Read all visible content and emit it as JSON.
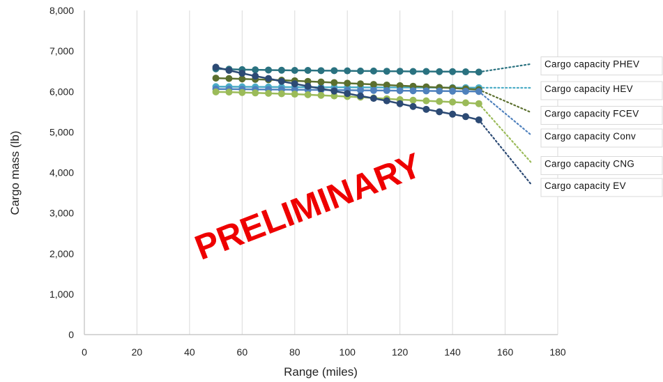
{
  "chart_data": {
    "type": "line",
    "xlabel": "Range (miles)",
    "ylabel": "Cargo mass (lb)",
    "xlim": [
      0,
      180
    ],
    "ylim": [
      0,
      8000
    ],
    "x_ticks": [
      "0",
      "20",
      "40",
      "60",
      "80",
      "100",
      "120",
      "140",
      "160",
      "180"
    ],
    "y_ticks": [
      "0",
      "1,000",
      "2,000",
      "3,000",
      "4,000",
      "5,000",
      "6,000",
      "7,000",
      "8,000"
    ],
    "grid": "vertical gridlines",
    "legend_placement": "right, labels at end of dotted trend lines",
    "x": [
      50,
      55,
      60,
      65,
      70,
      75,
      80,
      85,
      90,
      95,
      100,
      105,
      110,
      115,
      120,
      125,
      130,
      135,
      140,
      145,
      150
    ],
    "trend_end_x": 170,
    "series": [
      {
        "name": "Cargo capacity PHEV",
        "color": "#2a7280",
        "values": [
          6560,
          6550,
          6540,
          6535,
          6530,
          6525,
          6520,
          6520,
          6515,
          6515,
          6510,
          6505,
          6505,
          6500,
          6500,
          6495,
          6495,
          6490,
          6490,
          6485,
          6480
        ],
        "trend_end": 6680
      },
      {
        "name": "Cargo capacity HEV",
        "color": "#4bacc6",
        "values": [
          6120,
          6118,
          6116,
          6114,
          6112,
          6110,
          6108,
          6106,
          6105,
          6104,
          6103,
          6102,
          6101,
          6100,
          6099,
          6098,
          6097,
          6096,
          6095,
          6094,
          6093
        ],
        "trend_end": 6090
      },
      {
        "name": "Cargo capacity FCEV",
        "color": "#5b6f2e",
        "values": [
          6330,
          6320,
          6310,
          6300,
          6290,
          6280,
          6265,
          6250,
          6235,
          6220,
          6205,
          6190,
          6175,
          6160,
          6145,
          6130,
          6115,
          6100,
          6085,
          6065,
          6045
        ],
        "trend_end": 5480
      },
      {
        "name": "Cargo capacity Conv",
        "color": "#4f81bd",
        "values": [
          6060,
          6058,
          6055,
          6052,
          6050,
          6047,
          6044,
          6041,
          6038,
          6035,
          6032,
          6029,
          6026,
          6023,
          6020,
          6017,
          6014,
          6011,
          6008,
          6005,
          6000
        ],
        "trend_end": 4920
      },
      {
        "name": "Cargo capacity CNG",
        "color": "#9bbb59",
        "values": [
          5990,
          5985,
          5975,
          5965,
          5955,
          5945,
          5935,
          5920,
          5905,
          5890,
          5875,
          5860,
          5840,
          5820,
          5800,
          5785,
          5770,
          5755,
          5740,
          5720,
          5700
        ],
        "trend_end": 4240
      },
      {
        "name": "Cargo capacity EV",
        "color": "#2c4a74",
        "values": [
          6600,
          6520,
          6450,
          6380,
          6320,
          6250,
          6190,
          6130,
          6070,
          6010,
          5950,
          5890,
          5830,
          5770,
          5700,
          5630,
          5560,
          5500,
          5440,
          5380,
          5300
        ],
        "trend_end": 3700
      }
    ]
  },
  "legend": [
    {
      "label": "Cargo capacity PHEV",
      "y": 6700
    },
    {
      "label": "Cargo capacity HEV",
      "y": 6090
    },
    {
      "label": "Cargo capacity FCEV",
      "y": 5480
    },
    {
      "label": "Cargo capacity Conv",
      "y": 4920
    },
    {
      "label": "Cargo capacity CNG",
      "y": 4240
    },
    {
      "label": "Cargo capacity EV",
      "y": 3700
    }
  ],
  "watermark": "PRELIMINARY"
}
